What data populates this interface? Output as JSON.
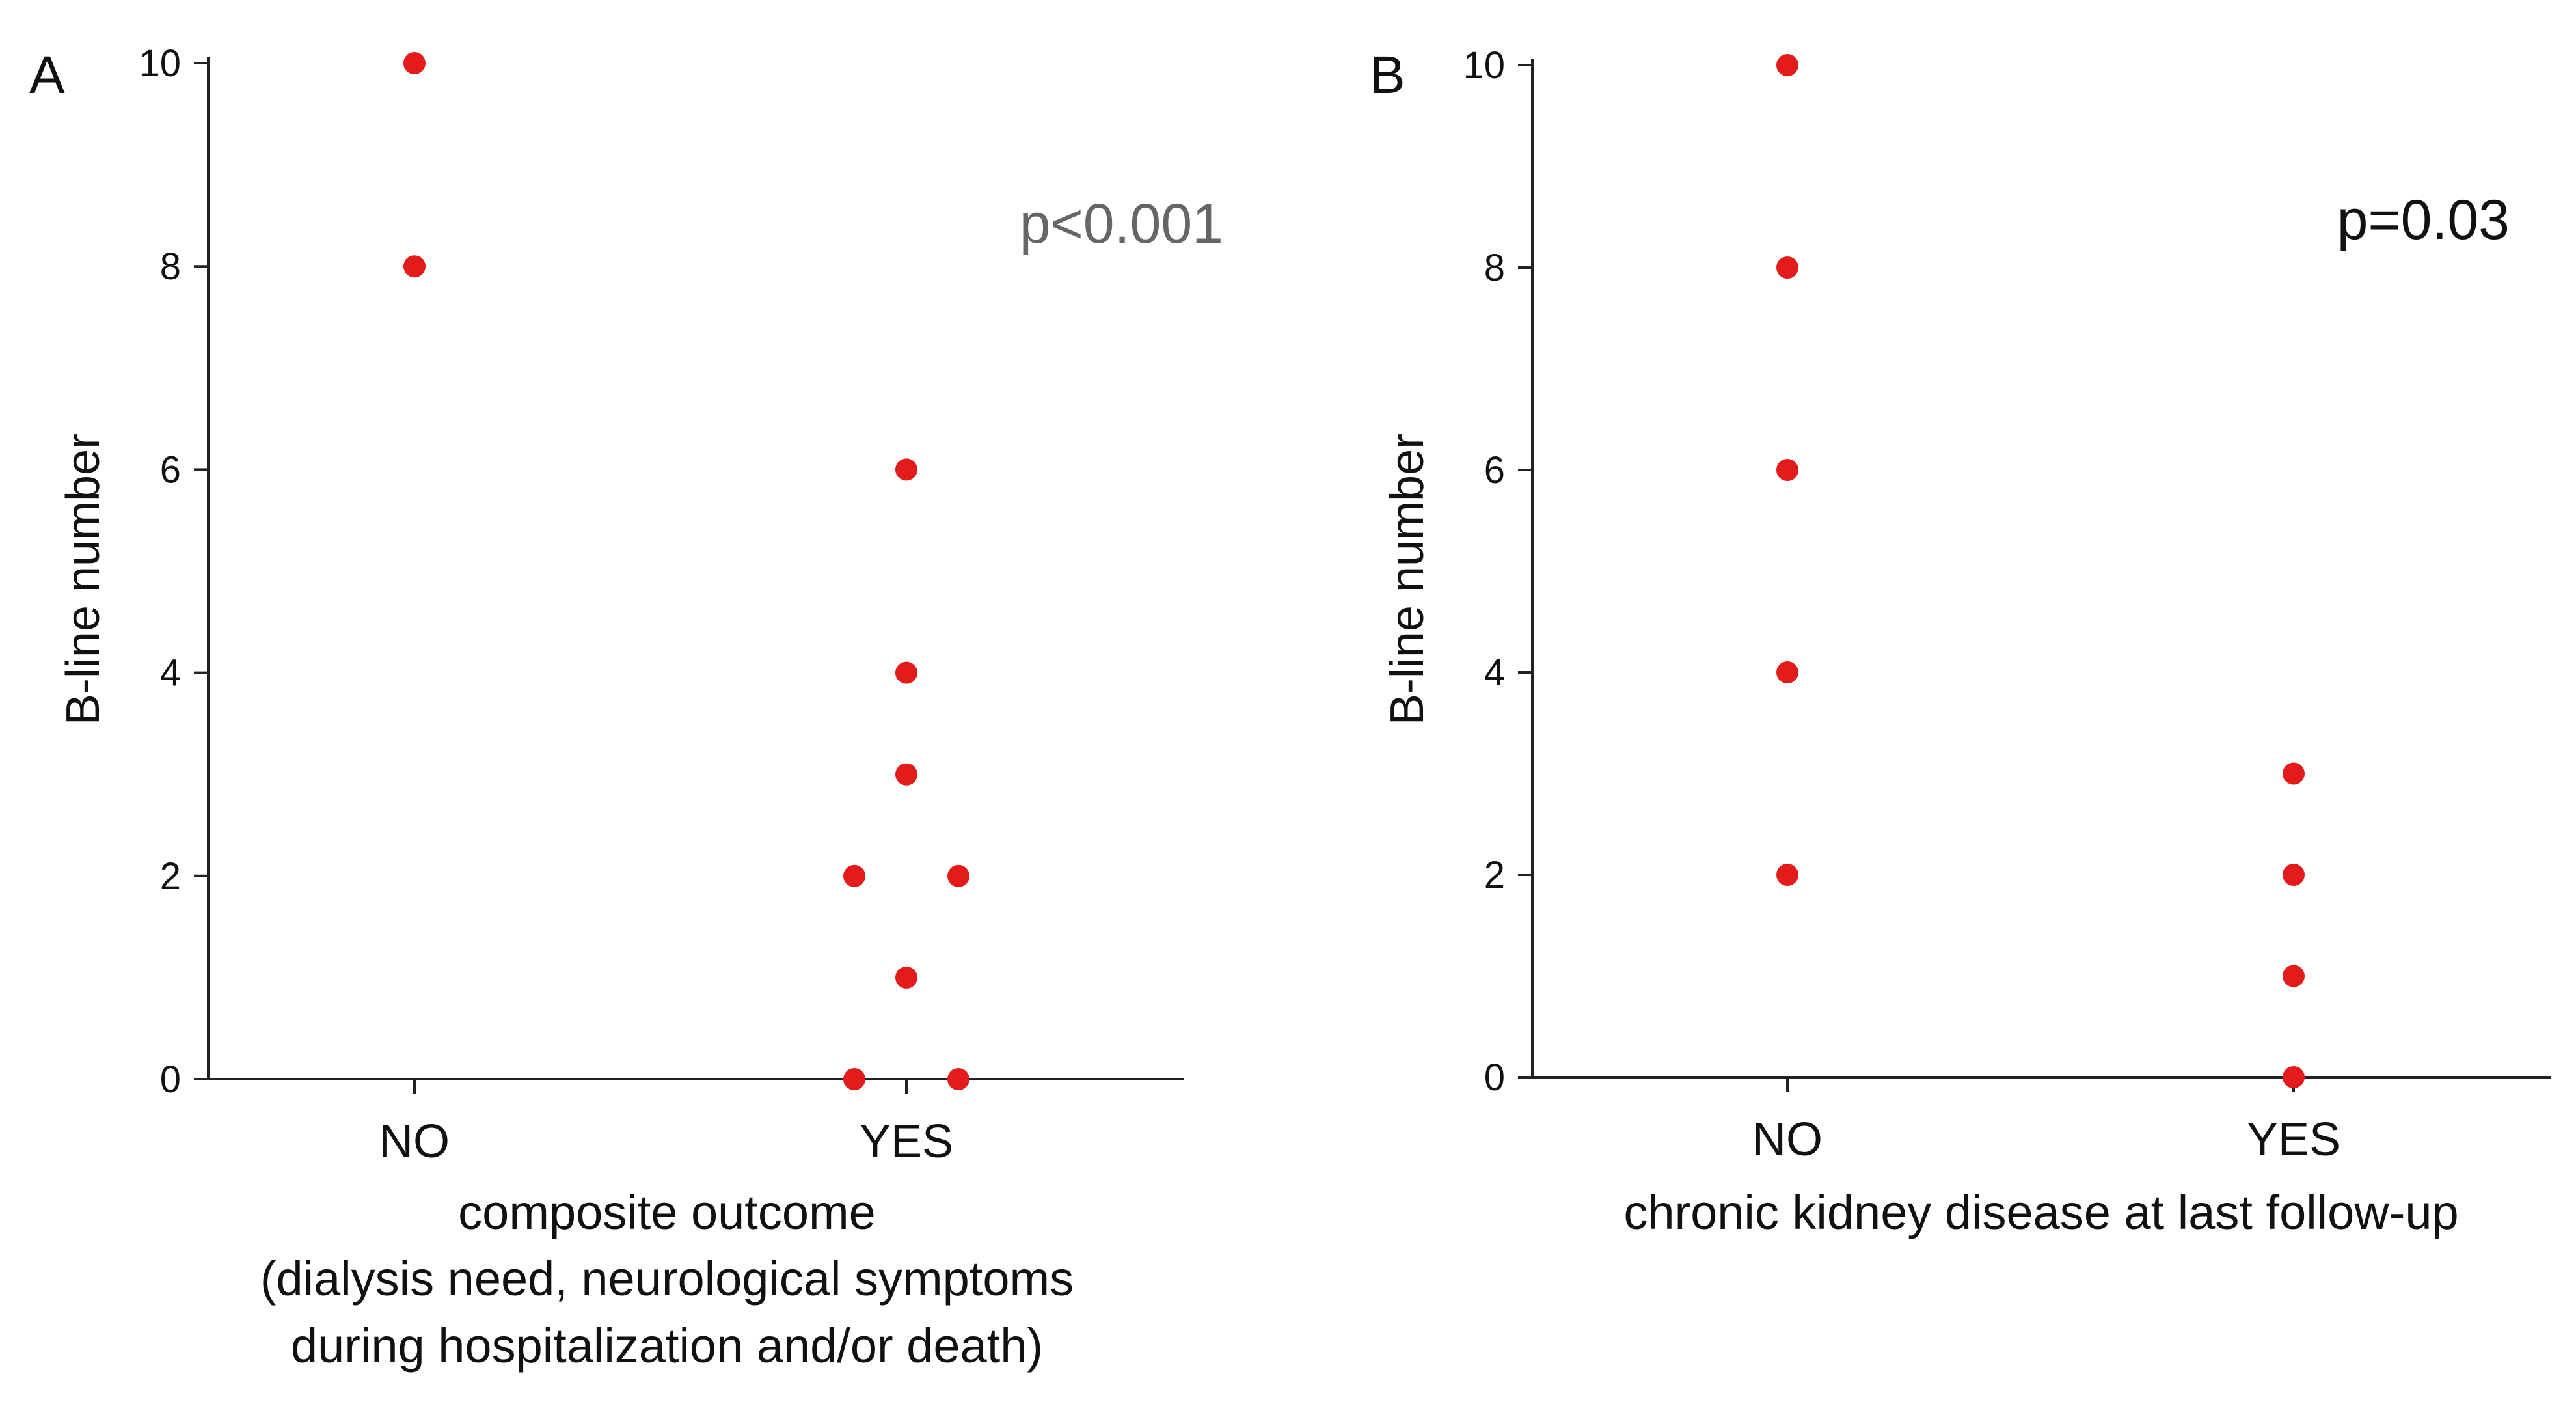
{
  "chart_data": [
    {
      "type": "scatter",
      "panel_label": "A",
      "categories": [
        "NO",
        "YES"
      ],
      "points": [
        {
          "category": "NO",
          "offset": 0,
          "value": 10
        },
        {
          "category": "NO",
          "offset": 0,
          "value": 8
        },
        {
          "category": "YES",
          "offset": 0,
          "value": 6
        },
        {
          "category": "YES",
          "offset": 0,
          "value": 4
        },
        {
          "category": "YES",
          "offset": 0,
          "value": 3
        },
        {
          "category": "YES",
          "offset": -1,
          "value": 2
        },
        {
          "category": "YES",
          "offset": 1,
          "value": 2
        },
        {
          "category": "YES",
          "offset": 0,
          "value": 1
        },
        {
          "category": "YES",
          "offset": -1,
          "value": 0
        },
        {
          "category": "YES",
          "offset": 1,
          "value": 0
        }
      ],
      "ylabel": "B-line number",
      "xlabel_lines": [
        "composite outcome",
        "(dialysis need, neurological symptoms",
        "during hospitalization and/or death)"
      ],
      "ylim": [
        0,
        10
      ],
      "yticks": [
        "0",
        "2",
        "4",
        "6",
        "8",
        "10"
      ],
      "annotation": "p<0.001",
      "point_color": "#e31b1b"
    },
    {
      "type": "scatter",
      "panel_label": "B",
      "categories": [
        "NO",
        "YES"
      ],
      "points": [
        {
          "category": "NO",
          "offset": 0,
          "value": 10
        },
        {
          "category": "NO",
          "offset": 0,
          "value": 8
        },
        {
          "category": "NO",
          "offset": 0,
          "value": 6
        },
        {
          "category": "NO",
          "offset": 0,
          "value": 4
        },
        {
          "category": "NO",
          "offset": 0,
          "value": 2
        },
        {
          "category": "YES",
          "offset": 0,
          "value": 3
        },
        {
          "category": "YES",
          "offset": 0,
          "value": 2
        },
        {
          "category": "YES",
          "offset": 0,
          "value": 1
        },
        {
          "category": "YES",
          "offset": 0,
          "value": 0
        }
      ],
      "ylabel": "B-line number",
      "xlabel_lines": [
        "chronic kidney disease at last follow-up"
      ],
      "ylim": [
        0,
        10
      ],
      "yticks": [
        "0",
        "2",
        "4",
        "6",
        "8",
        "10"
      ],
      "annotation": "p=0.03",
      "point_color": "#e31b1b"
    }
  ]
}
